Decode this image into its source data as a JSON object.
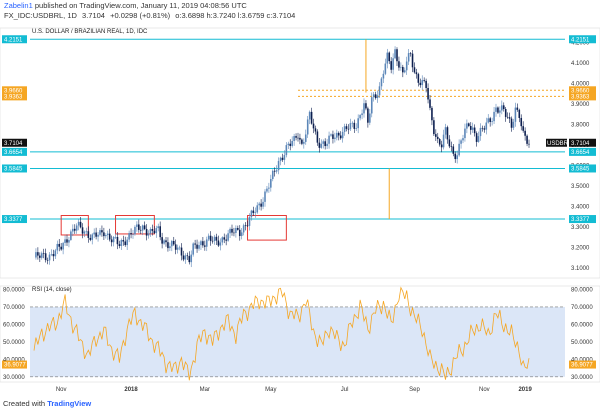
{
  "header": {
    "author": "Zabelin1",
    "published_text": "published on TradingView.com, January 11, 2019 04:08:56 UTC",
    "symbol": "FX_IDC:USDBRL, 1D",
    "last": "3.7104",
    "change": "+0.0298 (+0.81%)",
    "ohlc": "o:3.6898 h:3.7240 l:3.6759 c:3.7104"
  },
  "footer": {
    "prefix": "Created with",
    "brand": "TradingView"
  },
  "colors": {
    "up": "#5b86b8",
    "down": "#0d1f4f",
    "cyan": "#13bcd3",
    "orange": "#f5a623",
    "box": "#e53935",
    "rsi_fill": "#dbe6f7",
    "rsi_line": "#f5a623"
  },
  "chart_data": [
    {
      "type": "candlestick",
      "title": "U.S. DOLLAR / BRAZILIAN REAL, 1D, IDC",
      "ylim": [
        3.05,
        4.27
      ],
      "y_ticks": [
        3.1,
        3.2,
        3.3,
        3.4,
        3.5,
        3.6,
        3.7,
        3.8,
        3.9,
        4.0,
        4.1,
        4.2
      ],
      "y_tick_labels": [
        "3.1000",
        "3.2000",
        "3.3000",
        "3.4000",
        "3.5000",
        "3.6000",
        "3.7000",
        "3.8000",
        "3.9000",
        "4.0000",
        "4.1000",
        "4.2000"
      ],
      "x_ticks": [
        "Nov",
        "2018",
        "Mar",
        "May",
        "Jul",
        "Sep",
        "Nov",
        "2019"
      ],
      "close_path": [
        [
          0,
          3.15
        ],
        [
          8,
          3.16
        ],
        [
          14,
          3.2
        ],
        [
          18,
          3.26
        ],
        [
          22,
          3.3
        ],
        [
          26,
          3.28
        ],
        [
          30,
          3.25
        ],
        [
          34,
          3.26
        ],
        [
          36,
          3.28
        ],
        [
          40,
          3.24
        ],
        [
          44,
          3.21
        ],
        [
          48,
          3.25
        ],
        [
          52,
          3.28
        ],
        [
          56,
          3.3
        ],
        [
          60,
          3.27
        ],
        [
          64,
          3.28
        ],
        [
          66,
          3.24
        ],
        [
          70,
          3.21
        ],
        [
          74,
          3.19
        ],
        [
          78,
          3.16
        ],
        [
          80,
          3.14
        ],
        [
          82,
          3.19
        ],
        [
          86,
          3.22
        ],
        [
          90,
          3.24
        ],
        [
          94,
          3.22
        ],
        [
          98,
          3.25
        ],
        [
          102,
          3.27
        ],
        [
          106,
          3.28
        ],
        [
          110,
          3.32
        ],
        [
          114,
          3.38
        ],
        [
          118,
          3.44
        ],
        [
          122,
          3.52
        ],
        [
          126,
          3.62
        ],
        [
          130,
          3.68
        ],
        [
          134,
          3.72
        ],
        [
          136,
          3.76
        ],
        [
          138,
          3.7
        ],
        [
          140,
          3.76
        ],
        [
          142,
          3.84
        ],
        [
          146,
          3.72
        ],
        [
          150,
          3.7
        ],
        [
          154,
          3.74
        ],
        [
          158,
          3.76
        ],
        [
          162,
          3.78
        ],
        [
          166,
          3.8
        ],
        [
          170,
          3.9
        ],
        [
          172,
          3.8
        ],
        [
          174,
          3.92
        ],
        [
          178,
          3.98
        ],
        [
          180,
          4.06
        ],
        [
          182,
          4.12
        ],
        [
          184,
          4.08
        ],
        [
          186,
          4.16
        ],
        [
          188,
          4.1
        ],
        [
          190,
          4.04
        ],
        [
          192,
          4.1
        ],
        [
          194,
          4.14
        ],
        [
          196,
          4.06
        ],
        [
          198,
          4.02
        ],
        [
          200,
          4.0
        ],
        [
          202,
          3.98
        ],
        [
          204,
          3.86
        ],
        [
          206,
          3.78
        ],
        [
          208,
          3.72
        ],
        [
          210,
          3.7
        ],
        [
          212,
          3.76
        ],
        [
          214,
          3.7
        ],
        [
          216,
          3.66
        ],
        [
          218,
          3.66
        ],
        [
          220,
          3.72
        ],
        [
          222,
          3.76
        ],
        [
          224,
          3.8
        ],
        [
          226,
          3.78
        ],
        [
          228,
          3.74
        ],
        [
          232,
          3.78
        ],
        [
          236,
          3.84
        ],
        [
          238,
          3.88
        ],
        [
          242,
          3.86
        ],
        [
          246,
          3.8
        ],
        [
          248,
          3.88
        ],
        [
          250,
          3.84
        ],
        [
          252,
          3.74
        ],
        [
          255,
          3.71
        ]
      ],
      "annotations": {
        "price_lines": [
          {
            "label": "4.2151",
            "value": 4.2151,
            "color": "cyan"
          },
          {
            "label": "3.9660",
            "value": 3.966,
            "color": "orange",
            "dashed": true
          },
          {
            "label": "3.9363",
            "value": 3.9363,
            "color": "orange",
            "dashed": true
          },
          {
            "label": "3.6654",
            "value": 3.6654,
            "color": "cyan"
          },
          {
            "label": "3.5845",
            "value": 3.5845,
            "color": "cyan"
          },
          {
            "label": "3.3377",
            "value": 3.3377,
            "color": "cyan"
          }
        ],
        "last_price_label": "3.7104",
        "symbol_badge": "USDBRL",
        "boxes": [
          {
            "x0": 14,
            "x1": 28,
            "y0": 3.26,
            "y1": 3.355
          },
          {
            "x0": 42,
            "x1": 62,
            "y0": 3.265,
            "y1": 3.355
          },
          {
            "x0": 110,
            "x1": 130,
            "y0": 3.235,
            "y1": 3.355
          }
        ],
        "vertical_segments": [
          {
            "x": 171,
            "y0": 3.955,
            "y1": 4.215,
            "color": "orange"
          },
          {
            "x": 183,
            "y0": 3.3377,
            "y1": 3.5845,
            "color": "orange"
          }
        ]
      }
    },
    {
      "type": "line",
      "title": "RSI (14, close)",
      "ylim": [
        27,
        82
      ],
      "y_ticks": [
        30,
        40,
        50,
        60,
        70,
        80
      ],
      "y_tick_labels": [
        "30.0000",
        "40.0000",
        "50.0000",
        "60.0000",
        "70.0000",
        "80.0000"
      ],
      "band": [
        30,
        70
      ],
      "last_label": "36.9077",
      "series": [
        {
          "name": "RSI",
          "points": [
            [
              0,
              45
            ],
            [
              4,
              55
            ],
            [
              8,
              58
            ],
            [
              12,
              62
            ],
            [
              16,
              72
            ],
            [
              20,
              60
            ],
            [
              24,
              50
            ],
            [
              28,
              42
            ],
            [
              32,
              52
            ],
            [
              36,
              56
            ],
            [
              40,
              46
            ],
            [
              44,
              40
            ],
            [
              48,
              58
            ],
            [
              52,
              66
            ],
            [
              56,
              60
            ],
            [
              60,
              52
            ],
            [
              64,
              46
            ],
            [
              68,
              38
            ],
            [
              72,
              34
            ],
            [
              76,
              40
            ],
            [
              80,
              30
            ],
            [
              84,
              48
            ],
            [
              88,
              56
            ],
            [
              92,
              50
            ],
            [
              96,
              58
            ],
            [
              100,
              62
            ],
            [
              104,
              54
            ],
            [
              108,
              66
            ],
            [
              112,
              70
            ],
            [
              116,
              74
            ],
            [
              120,
              72
            ],
            [
              124,
              76
            ],
            [
              128,
              78
            ],
            [
              132,
              66
            ],
            [
              136,
              64
            ],
            [
              140,
              74
            ],
            [
              144,
              56
            ],
            [
              148,
              48
            ],
            [
              152,
              58
            ],
            [
              156,
              52
            ],
            [
              160,
              48
            ],
            [
              164,
              62
            ],
            [
              168,
              70
            ],
            [
              172,
              58
            ],
            [
              176,
              68
            ],
            [
              180,
              72
            ],
            [
              184,
              60
            ],
            [
              188,
              78
            ],
            [
              192,
              76
            ],
            [
              196,
              64
            ],
            [
              200,
              58
            ],
            [
              204,
              40
            ],
            [
              208,
              36
            ],
            [
              212,
              30
            ],
            [
              214,
              34
            ],
            [
              218,
              42
            ],
            [
              222,
              48
            ],
            [
              226,
              56
            ],
            [
              230,
              60
            ],
            [
              234,
              54
            ],
            [
              238,
              66
            ],
            [
              242,
              60
            ],
            [
              246,
              54
            ],
            [
              250,
              46
            ],
            [
              252,
              34
            ],
            [
              255,
              37
            ]
          ]
        }
      ]
    }
  ]
}
